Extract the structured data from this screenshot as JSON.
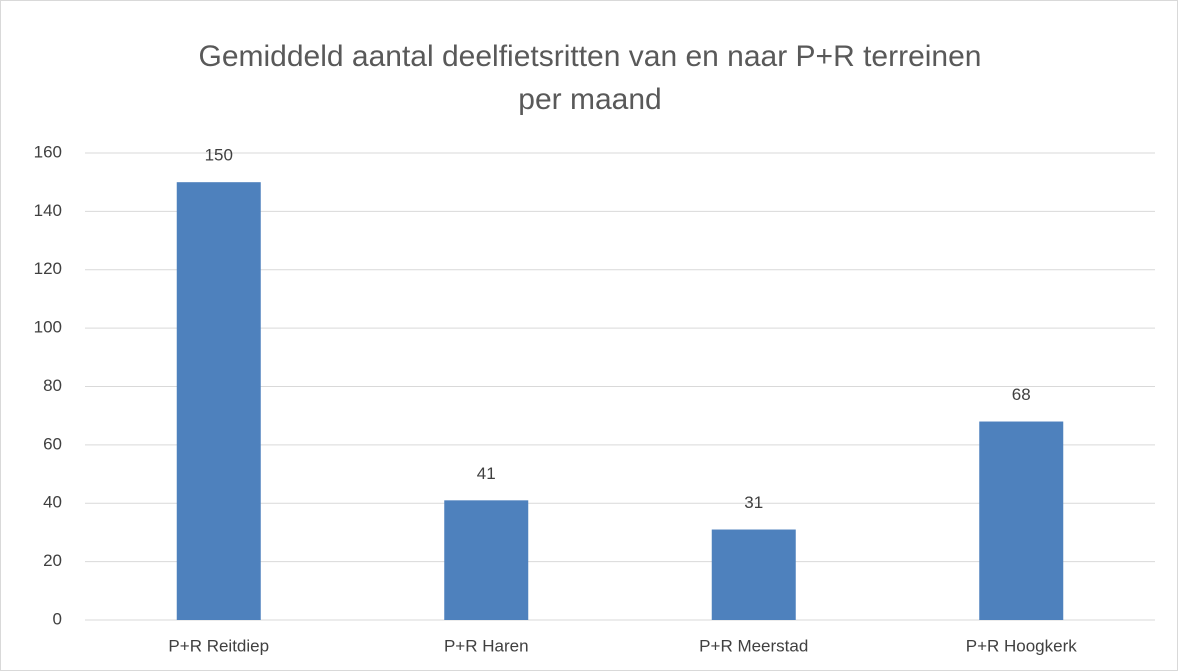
{
  "chart_data": {
    "type": "bar",
    "title": [
      "Gemiddeld aantal deelfietsritten van en naar P+R terreinen",
      "per maand"
    ],
    "categories": [
      "P+R Reitdiep",
      "P+R Haren",
      "P+R Meerstad",
      "P+R Hoogkerk"
    ],
    "values": [
      150,
      41,
      31,
      68
    ],
    "color": "#4e81bd",
    "ylim": [
      0,
      160
    ],
    "yticks": [
      0,
      20,
      40,
      60,
      80,
      100,
      120,
      140,
      160
    ],
    "grid": true,
    "data_labels": true
  }
}
